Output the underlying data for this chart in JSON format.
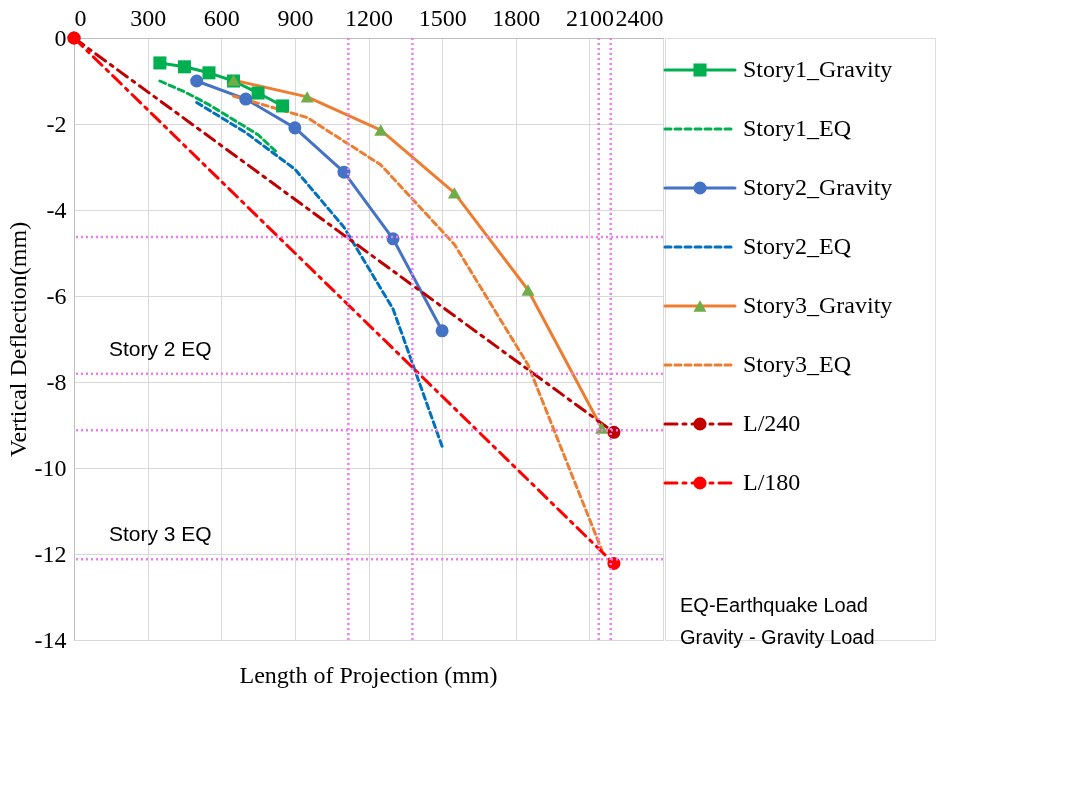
{
  "chart_data": {
    "type": "line",
    "xlabel": "Length of Projection (mm)",
    "ylabel": "Vertical Deflection(mm)",
    "xlim": [
      0,
      2400
    ],
    "xticks": [
      0,
      300,
      600,
      900,
      1200,
      1500,
      1800,
      2100,
      2400
    ],
    "ylim": [
      -14,
      0
    ],
    "yticks": [
      0,
      -2,
      -4,
      -6,
      -8,
      -10,
      -12,
      -14
    ],
    "grid": true,
    "legend": "right",
    "series": [
      {
        "name": "Story1_Gravity",
        "color": "#00b050",
        "marker": "square",
        "line_style": "solid",
        "x": [
          350,
          450,
          550,
          650,
          750,
          850
        ],
        "values": [
          -0.58,
          -0.67,
          -0.81,
          -1.0,
          -1.28,
          -1.58
        ]
      },
      {
        "name": "Story1_EQ",
        "color": "#00b050",
        "marker": "none",
        "line_style": "dashed",
        "x": [
          350,
          450,
          550,
          650,
          750,
          825
        ],
        "values": [
          -1.0,
          -1.25,
          -1.55,
          -1.9,
          -2.25,
          -2.65
        ]
      },
      {
        "name": "Story2_Gravity",
        "color": "#4472c4",
        "marker": "circle",
        "line_style": "solid",
        "x": [
          500,
          700,
          900,
          1100,
          1300,
          1500
        ],
        "values": [
          -1.0,
          -1.42,
          -2.09,
          -3.12,
          -4.67,
          -6.81
        ]
      },
      {
        "name": "Story2_EQ",
        "color": "#0070c0",
        "marker": "none",
        "line_style": "dashed",
        "x": [
          500,
          700,
          900,
          1100,
          1300,
          1500
        ],
        "values": [
          -1.5,
          -2.2,
          -3.05,
          -4.4,
          -6.3,
          -9.5
        ]
      },
      {
        "name": "Story3_Gravity",
        "color": "#ed7d31",
        "colors": [
          "#70ad47",
          "#70ad47",
          "#70ad47",
          "#70ad47",
          "#70ad47",
          "#70ad47"
        ],
        "marker": "triangle",
        "line_style": "solid",
        "x": [
          650,
          950,
          1250,
          1550,
          1850,
          2150
        ],
        "values": [
          -0.98,
          -1.37,
          -2.14,
          -3.6,
          -5.86,
          -9.07
        ]
      },
      {
        "name": "Story3_EQ",
        "color": "#ed7d31",
        "marker": "none",
        "line_style": "dashed",
        "x": [
          650,
          950,
          1250,
          1550,
          1850,
          2150
        ],
        "values": [
          -1.35,
          -1.85,
          -2.95,
          -4.8,
          -7.6,
          -11.9
        ]
      },
      {
        "name": "L/240",
        "color": "#c00000",
        "marker": "circle",
        "line_style": "dashdot",
        "x": [
          0,
          2200
        ],
        "values": [
          0,
          -9.17
        ]
      },
      {
        "name": "L/180",
        "color": "#ff0000",
        "marker": "circle",
        "line_style": "dashdot",
        "x": [
          0,
          2200
        ],
        "values": [
          0,
          -12.22
        ]
      }
    ],
    "ref_lines": [
      {
        "axis": "x",
        "value": 1118,
        "color": "#f07cf0",
        "line_style": "dotted"
      },
      {
        "axis": "x",
        "value": 1379,
        "color": "#f07cf0",
        "line_style": "dotted"
      },
      {
        "axis": "x",
        "value": 2138,
        "color": "#f07cf0",
        "line_style": "dotted"
      },
      {
        "axis": "x",
        "value": 2187,
        "color": "#f07cf0",
        "line_style": "dotted"
      },
      {
        "axis": "y",
        "value": -4.63,
        "color": "#f07cf0",
        "line_style": "dotted"
      },
      {
        "axis": "y",
        "value": -7.81,
        "label": "Story 2 EQ",
        "color": "#f07cf0",
        "line_style": "dotted"
      },
      {
        "axis": "y",
        "value": -9.12,
        "color": "#f07cf0",
        "line_style": "dotted"
      },
      {
        "axis": "y",
        "value": -12.12,
        "label": "Story 3 EQ",
        "color": "#f07cf0",
        "line_style": "dotted"
      }
    ],
    "annotations": [
      "EQ-Earthquake Load",
      "Gravity - Gravity Load"
    ]
  }
}
